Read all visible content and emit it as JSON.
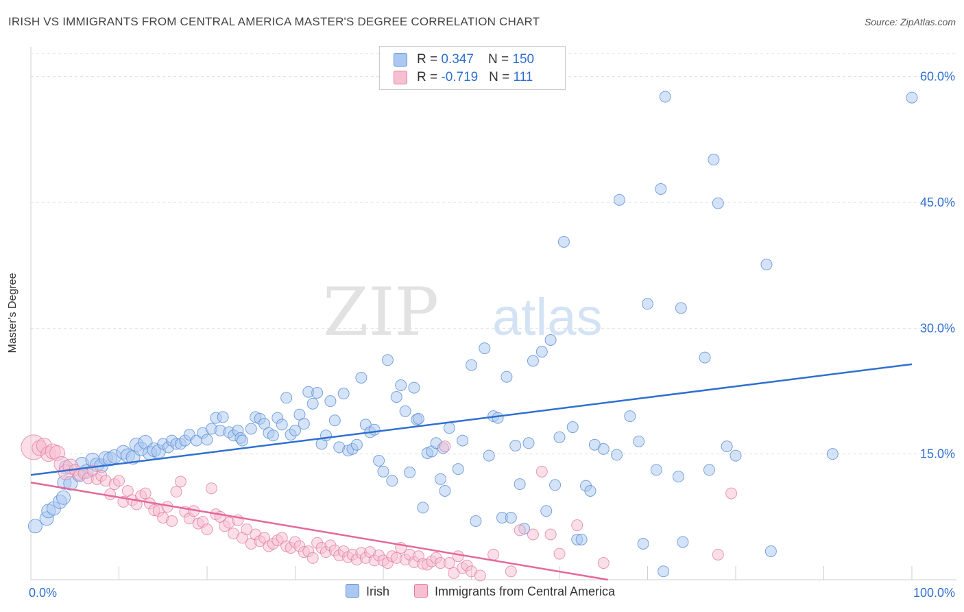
{
  "header": {
    "title": "IRISH VS IMMIGRANTS FROM CENTRAL AMERICA MASTER'S DEGREE CORRELATION CHART",
    "source": "Source: ZipAtlas.com"
  },
  "watermark": {
    "zip": "ZIP",
    "atlas": "atlas"
  },
  "legend": {
    "rows": [
      {
        "r_label": "R = ",
        "r_value": "0.347",
        "n_label": "N = ",
        "n_value": "150",
        "color": "#aac8f0",
        "border": "#5b8fd6"
      },
      {
        "r_label": "R = ",
        "r_value": "-0.719",
        "n_label": "N = ",
        "n_value": "111",
        "color": "#f7bfd2",
        "border": "#e07aa0"
      }
    ]
  },
  "chart_data": {
    "type": "scatter",
    "title": "IRISH VS IMMIGRANTS FROM CENTRAL AMERICA MASTER'S DEGREE CORRELATION CHART",
    "xlabel": "",
    "ylabel": "Master's Degree",
    "xlim": [
      0,
      100
    ],
    "ylim": [
      0,
      63
    ],
    "x_tick_labels": [
      "0.0%",
      "100.0%"
    ],
    "y_ticks": [
      15,
      30,
      45,
      60
    ],
    "y_tick_labels": [
      "15.0%",
      "30.0%",
      "45.0%",
      "60.0%"
    ],
    "grid": true,
    "legend_position": "top-center",
    "colors": {
      "irish": "#5b8fd6",
      "irish_fill": "#aac8f0",
      "immigrants": "#e07aa0",
      "immigrants_fill": "#f7bfd2",
      "trend_irish": "#2f6fd0",
      "trend_immigrants": "#e5679a",
      "axis_text": "#2f6fd0"
    },
    "series": [
      {
        "name": "Irish",
        "trend": {
          "x": [
            0,
            100
          ],
          "y": [
            12.5,
            25.7
          ]
        },
        "points": [
          [
            0.5,
            6.4
          ],
          [
            1.8,
            7.3
          ],
          [
            2.0,
            8.2
          ],
          [
            2.6,
            8.5
          ],
          [
            3.3,
            9.3
          ],
          [
            3.7,
            9.8
          ],
          [
            3.8,
            11.6
          ],
          [
            4.5,
            11.5
          ],
          [
            4.0,
            13.4
          ],
          [
            5.5,
            12.5
          ],
          [
            5.8,
            13.8
          ],
          [
            6.3,
            12.9
          ],
          [
            7.0,
            14.3
          ],
          [
            7.5,
            13.7
          ],
          [
            8.0,
            13.6
          ],
          [
            8.5,
            14.5
          ],
          [
            9.0,
            14.4
          ],
          [
            9.5,
            14.7
          ],
          [
            10.5,
            15.2
          ],
          [
            11.0,
            14.8
          ],
          [
            11.6,
            14.6
          ],
          [
            12.0,
            16.1
          ],
          [
            12.5,
            15.6
          ],
          [
            13.0,
            16.4
          ],
          [
            13.5,
            15.1
          ],
          [
            14.0,
            15.5
          ],
          [
            14.5,
            15.3
          ],
          [
            15.0,
            16.2
          ],
          [
            15.6,
            15.8
          ],
          [
            16.0,
            16.6
          ],
          [
            16.5,
            16.2
          ],
          [
            17.0,
            16.2
          ],
          [
            17.5,
            16.6
          ],
          [
            18.0,
            17.3
          ],
          [
            18.8,
            16.6
          ],
          [
            19.5,
            17.5
          ],
          [
            20.0,
            16.7
          ],
          [
            20.5,
            18.0
          ],
          [
            21.0,
            19.3
          ],
          [
            21.5,
            17.8
          ],
          [
            21.8,
            19.4
          ],
          [
            22.5,
            17.6
          ],
          [
            23.0,
            17.2
          ],
          [
            23.5,
            17.8
          ],
          [
            23.8,
            16.9
          ],
          [
            24.0,
            16.6
          ],
          [
            25.0,
            18.0
          ],
          [
            25.5,
            19.4
          ],
          [
            26.0,
            19.2
          ],
          [
            26.5,
            18.6
          ],
          [
            27.0,
            17.5
          ],
          [
            27.5,
            17.2
          ],
          [
            28.0,
            19.3
          ],
          [
            28.5,
            18.5
          ],
          [
            29.0,
            21.7
          ],
          [
            29.5,
            17.3
          ],
          [
            30.0,
            17.8
          ],
          [
            30.5,
            19.7
          ],
          [
            31.0,
            18.6
          ],
          [
            31.5,
            22.4
          ],
          [
            32.0,
            21.0
          ],
          [
            32.5,
            22.3
          ],
          [
            33.0,
            16.2
          ],
          [
            33.5,
            17.2
          ],
          [
            34.0,
            21.3
          ],
          [
            34.5,
            19.0
          ],
          [
            35.0,
            15.8
          ],
          [
            35.5,
            22.2
          ],
          [
            36.0,
            15.4
          ],
          [
            36.5,
            15.6
          ],
          [
            37.0,
            16.1
          ],
          [
            37.5,
            24.1
          ],
          [
            38.0,
            18.5
          ],
          [
            38.5,
            17.6
          ],
          [
            39.0,
            17.9
          ],
          [
            39.5,
            14.2
          ],
          [
            40.0,
            12.9
          ],
          [
            40.5,
            26.2
          ],
          [
            41.0,
            11.8
          ],
          [
            41.5,
            21.8
          ],
          [
            42.0,
            23.2
          ],
          [
            42.5,
            20.1
          ],
          [
            43.0,
            12.8
          ],
          [
            43.5,
            22.9
          ],
          [
            43.8,
            19.1
          ],
          [
            44.0,
            19.2
          ],
          [
            44.5,
            8.6
          ],
          [
            45.0,
            15.1
          ],
          [
            45.5,
            15.3
          ],
          [
            46.0,
            16.3
          ],
          [
            46.5,
            12.0
          ],
          [
            46.8,
            15.7
          ],
          [
            47.0,
            10.6
          ],
          [
            47.5,
            18.1
          ],
          [
            48.5,
            13.2
          ],
          [
            49.0,
            16.6
          ],
          [
            50.0,
            25.6
          ],
          [
            50.5,
            7.0
          ],
          [
            51.5,
            27.6
          ],
          [
            52.0,
            14.8
          ],
          [
            52.5,
            19.5
          ],
          [
            53.0,
            19.3
          ],
          [
            53.5,
            7.4
          ],
          [
            54.0,
            24.2
          ],
          [
            54.5,
            7.4
          ],
          [
            55.0,
            16.0
          ],
          [
            55.5,
            11.4
          ],
          [
            56.0,
            6.1
          ],
          [
            56.5,
            16.3
          ],
          [
            57.0,
            26.1
          ],
          [
            58.0,
            27.2
          ],
          [
            58.5,
            8.2
          ],
          [
            59.0,
            28.6
          ],
          [
            59.5,
            11.3
          ],
          [
            60.0,
            17.0
          ],
          [
            60.5,
            40.3
          ],
          [
            61.5,
            18.2
          ],
          [
            62.0,
            4.8
          ],
          [
            62.5,
            4.8
          ],
          [
            63.0,
            11.2
          ],
          [
            63.5,
            10.6
          ],
          [
            64.0,
            16.1
          ],
          [
            65.0,
            15.6
          ],
          [
            66.5,
            14.9
          ],
          [
            66.8,
            45.3
          ],
          [
            68.0,
            19.5
          ],
          [
            69.0,
            16.5
          ],
          [
            69.5,
            4.3
          ],
          [
            70.0,
            32.9
          ],
          [
            71.0,
            13.1
          ],
          [
            71.5,
            46.6
          ],
          [
            71.8,
            1.0
          ],
          [
            72.0,
            57.6
          ],
          [
            73.5,
            12.3
          ],
          [
            73.8,
            32.4
          ],
          [
            74.0,
            4.5
          ],
          [
            76.5,
            26.5
          ],
          [
            77.0,
            13.1
          ],
          [
            77.5,
            50.1
          ],
          [
            78.0,
            44.9
          ],
          [
            79.0,
            15.9
          ],
          [
            80.0,
            14.8
          ],
          [
            83.5,
            37.6
          ],
          [
            84.0,
            3.4
          ],
          [
            91.0,
            15.0
          ],
          [
            100.0,
            57.5
          ]
        ]
      },
      {
        "name": "Immigrants from Central America",
        "trend": {
          "x": [
            0,
            65.5
          ],
          "y": [
            11.6,
            0
          ]
        },
        "points": [
          [
            0.3,
            15.8
          ],
          [
            1.0,
            15.7
          ],
          [
            1.5,
            16.0
          ],
          [
            2.0,
            15.0
          ],
          [
            2.5,
            15.3
          ],
          [
            3.0,
            15.1
          ],
          [
            3.5,
            13.8
          ],
          [
            4.0,
            12.8
          ],
          [
            4.5,
            13.5
          ],
          [
            5.0,
            13.1
          ],
          [
            5.5,
            12.5
          ],
          [
            6.0,
            12.7
          ],
          [
            6.5,
            12.1
          ],
          [
            7.0,
            13.0
          ],
          [
            7.5,
            12.0
          ],
          [
            8.0,
            12.4
          ],
          [
            8.5,
            11.8
          ],
          [
            9.0,
            10.2
          ],
          [
            9.5,
            11.4
          ],
          [
            10.0,
            11.8
          ],
          [
            10.5,
            9.3
          ],
          [
            11.0,
            10.6
          ],
          [
            11.5,
            9.5
          ],
          [
            12.0,
            9.0
          ],
          [
            12.5,
            10.0
          ],
          [
            13.0,
            10.3
          ],
          [
            13.5,
            9.1
          ],
          [
            14.0,
            8.3
          ],
          [
            14.5,
            8.2
          ],
          [
            15.0,
            7.4
          ],
          [
            15.5,
            8.7
          ],
          [
            16.0,
            7.0
          ],
          [
            16.5,
            10.5
          ],
          [
            17.0,
            11.7
          ],
          [
            17.5,
            8.1
          ],
          [
            18.0,
            7.3
          ],
          [
            18.5,
            8.2
          ],
          [
            19.0,
            6.7
          ],
          [
            19.5,
            6.9
          ],
          [
            20.0,
            6.0
          ],
          [
            20.5,
            10.9
          ],
          [
            21.0,
            7.8
          ],
          [
            21.5,
            7.5
          ],
          [
            22.0,
            6.4
          ],
          [
            22.5,
            6.8
          ],
          [
            23.0,
            5.5
          ],
          [
            23.5,
            7.1
          ],
          [
            24.0,
            5.0
          ],
          [
            24.5,
            6.0
          ],
          [
            25.0,
            4.3
          ],
          [
            25.5,
            5.4
          ],
          [
            26.0,
            4.6
          ],
          [
            26.5,
            5.0
          ],
          [
            27.0,
            4.0
          ],
          [
            27.5,
            4.3
          ],
          [
            28.0,
            4.7
          ],
          [
            28.5,
            5.0
          ],
          [
            29.0,
            4.0
          ],
          [
            29.5,
            3.8
          ],
          [
            30.0,
            4.5
          ],
          [
            30.5,
            4.0
          ],
          [
            31.0,
            3.3
          ],
          [
            31.5,
            3.4
          ],
          [
            32.0,
            2.6
          ],
          [
            32.5,
            4.4
          ],
          [
            33.0,
            3.8
          ],
          [
            33.5,
            3.3
          ],
          [
            34.0,
            4.1
          ],
          [
            34.5,
            3.5
          ],
          [
            35.0,
            2.9
          ],
          [
            35.5,
            3.4
          ],
          [
            36.0,
            2.7
          ],
          [
            36.5,
            3.0
          ],
          [
            37.0,
            2.4
          ],
          [
            37.5,
            3.2
          ],
          [
            38.0,
            2.6
          ],
          [
            38.5,
            3.3
          ],
          [
            39.0,
            2.3
          ],
          [
            39.5,
            2.9
          ],
          [
            40.0,
            2.3
          ],
          [
            40.5,
            2.0
          ],
          [
            41.0,
            2.8
          ],
          [
            41.5,
            2.6
          ],
          [
            42.0,
            3.8
          ],
          [
            42.5,
            2.4
          ],
          [
            43.0,
            3.0
          ],
          [
            43.5,
            2.1
          ],
          [
            44.0,
            2.8
          ],
          [
            44.5,
            1.9
          ],
          [
            45.0,
            1.8
          ],
          [
            45.5,
            2.2
          ],
          [
            46.0,
            2.6
          ],
          [
            46.5,
            2.0
          ],
          [
            47.0,
            15.9
          ],
          [
            47.5,
            2.0
          ],
          [
            48.0,
            0.8
          ],
          [
            48.5,
            2.8
          ],
          [
            49.0,
            1.4
          ],
          [
            49.5,
            1.7
          ],
          [
            50.0,
            1.0
          ],
          [
            51.0,
            0.5
          ],
          [
            52.5,
            3.0
          ],
          [
            54.5,
            1.0
          ],
          [
            55.5,
            5.9
          ],
          [
            57.0,
            5.4
          ],
          [
            58.0,
            12.9
          ],
          [
            59.0,
            5.4
          ],
          [
            60.0,
            3.1
          ],
          [
            62.0,
            6.5
          ],
          [
            65.0,
            2.0
          ],
          [
            78.0,
            3.0
          ],
          [
            79.5,
            10.3
          ]
        ]
      }
    ]
  },
  "bottom_legend": {
    "items": [
      {
        "label": "Irish",
        "color": "#aac8f0",
        "border": "#5b8fd6"
      },
      {
        "label": "Immigrants from Central America",
        "color": "#f7bfd2",
        "border": "#e07aa0"
      }
    ]
  }
}
